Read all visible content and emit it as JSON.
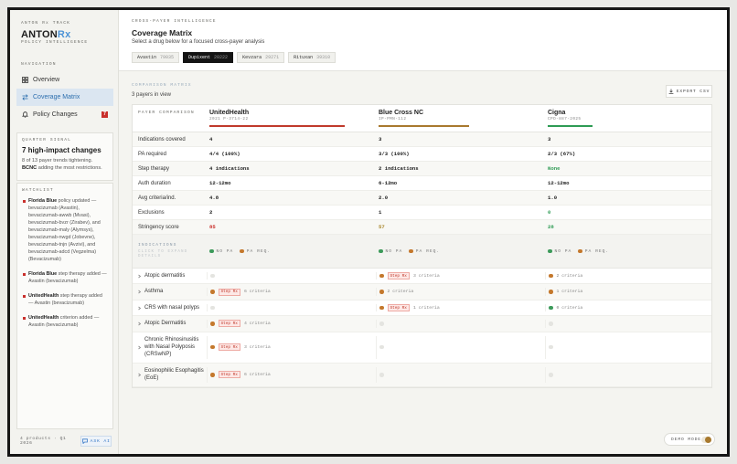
{
  "sidebar": {
    "brand_label": "ANTON Rx TRACK",
    "logo": {
      "main": "ANTON",
      "accent": "Rx"
    },
    "tagline": "POLICY INTELLIGENCE",
    "nav_label": "NAVIGATION",
    "nav": [
      {
        "label": "Overview"
      },
      {
        "label": "Coverage Matrix",
        "active": true
      },
      {
        "label": "Policy Changes",
        "badge": "7"
      }
    ],
    "signal": {
      "label": "QUARTER SIGNAL",
      "headline": "7 high-impact changes",
      "text_before": "8 of 13 payer trends tightening. ",
      "strong": "BCNC",
      "text_after": " adding the most restrictions."
    },
    "watchlist": {
      "label": "WATCHLIST",
      "items": [
        {
          "payer": "Florida Blue",
          "text": " policy updated — bevacizumab (Avastin), bevacizumab-awwb (Mvasi), bevacizumab-bvzr (Zirabev), and bevacizumab-maly (Alymsys), bevacizumab-nwgd (Jobevne), bevacizumab-tnjn (Avzivi), and bevacizumab-adcd (Vegzelma) (Bevacizumab)"
        },
        {
          "payer": "Florida Blue",
          "text": " step therapy added — Avastin (bevacizumab)"
        },
        {
          "payer": "UnitedHealth",
          "text": " step therapy added — Avastin (bevacizumab)"
        },
        {
          "payer": "UnitedHealth",
          "text": " criterion added — Avastin (bevacizumab)"
        }
      ]
    },
    "footer": {
      "summary": "4 products · Q1 2026",
      "button": "ASK AI"
    }
  },
  "header": {
    "eyebrow": "CROSS-PAYER INTELLIGENCE",
    "title": "Coverage Matrix",
    "subtitle": "Select a drug below for a focused cross-payer analysis",
    "tabs": [
      {
        "name": "Avastin",
        "code": "79035"
      },
      {
        "name": "Dupixent",
        "code": "20222",
        "active": true
      },
      {
        "name": "Kevzara",
        "code": "29271"
      },
      {
        "name": "Rituxan",
        "code": "39310"
      }
    ]
  },
  "matrix": {
    "label": "COMPARISON MATRIX",
    "count": "3 payers in view",
    "export": "EXPORT CSV",
    "corner": "PAYER COMPARISON",
    "payers": [
      {
        "name": "UnitedHealth",
        "code": "2021 P-3714-22",
        "color": "#c0392b"
      },
      {
        "name": "Blue Cross NC",
        "code": "IP-PMN-112",
        "color": "#a8792e"
      },
      {
        "name": "Cigna",
        "code": "CPD-887-2025",
        "color": "#2e9b54"
      }
    ],
    "metrics": [
      {
        "label": "Indications covered",
        "values": [
          "4",
          "3",
          "3"
        ]
      },
      {
        "label": "PA required",
        "values": [
          "4/4 (100%)",
          "3/3 (100%)",
          "2/3 (67%)"
        ]
      },
      {
        "label": "Step therapy",
        "values": [
          "4 indications",
          "2 indications",
          "None"
        ],
        "colors": [
          null,
          null,
          "#2e9b54"
        ]
      },
      {
        "label": "Auth duration",
        "values": [
          "12-12mo",
          "6-12mo",
          "12-12mo"
        ]
      },
      {
        "label": "Avg criteria/ind.",
        "values": [
          "4.8",
          "2.0",
          "1.0"
        ]
      },
      {
        "label": "Exclusions",
        "values": [
          "2",
          "1",
          "0"
        ],
        "colors": [
          null,
          null,
          "#2e9b54"
        ]
      },
      {
        "label": "Stringency score",
        "values": [
          85,
          57,
          28
        ],
        "colors": [
          "#c9302c",
          "#a8862a",
          "#2e9b54"
        ]
      }
    ]
  },
  "indications": {
    "label": "INDICATIONS",
    "hint": "CLICK TO EXPAND DETAILS",
    "legend": {
      "no_pa": "NO PA",
      "pa_req": "PA REQ.",
      "no_pa_color": "#3c9a5a",
      "pa_color": "#c4782c"
    },
    "rows": [
      {
        "name": "Atopic dermatitis",
        "cells": [
          null,
          {
            "pa": true,
            "step": "Step Rx",
            "criteria": "3 criteria"
          },
          {
            "pa": true,
            "criteria": "2 criteria"
          }
        ]
      },
      {
        "name": "Asthma",
        "cells": [
          {
            "pa": true,
            "step": "Step Rx",
            "criteria": "6 criteria"
          },
          {
            "pa": true,
            "criteria": "2 criteria"
          },
          {
            "pa": true,
            "criteria": "1 criteria"
          }
        ]
      },
      {
        "name": "CRS with nasal polyps",
        "cells": [
          null,
          {
            "pa": true,
            "step": "Step Rx",
            "criteria": "1 criteria"
          },
          {
            "pa": false,
            "criteria": "0 criteria"
          }
        ]
      },
      {
        "name": "Atopic Dermatitis",
        "cells": [
          {
            "pa": true,
            "step": "Step Rx",
            "criteria": "4 criteria"
          },
          null,
          null
        ]
      },
      {
        "name": "Chronic Rhinosinusitis with Nasal Polyposis (CRSwNP)",
        "cells": [
          {
            "pa": true,
            "step": "Step Rx",
            "criteria": "3 criteria"
          },
          null,
          null
        ]
      },
      {
        "name": "Eosinophilic Esophagitis (EoE)",
        "cells": [
          {
            "pa": true,
            "step": "Step Rx",
            "criteria": "6 criteria"
          },
          null,
          null
        ]
      }
    ]
  },
  "demo": {
    "label": "DEMO MODE"
  }
}
